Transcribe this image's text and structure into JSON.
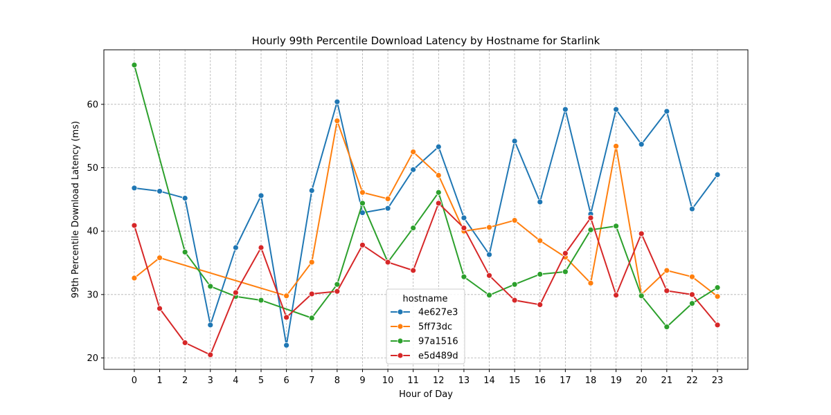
{
  "chart_data": {
    "type": "line",
    "title": "Hourly 99th Percentile Download Latency by Hostname for Starlink",
    "xlabel": "Hour of Day",
    "ylabel": "99th Percentile Download Latency (ms)",
    "xlim": [
      -1.2,
      24.2
    ],
    "ylim": [
      18.2,
      68.6
    ],
    "yticks": [
      20,
      30,
      40,
      50,
      60
    ],
    "grid": true,
    "legend": {
      "title": "hostname",
      "placement": "lower-center"
    },
    "series": [
      {
        "name": "4e627e3",
        "color": "#1f77b4",
        "points": [
          [
            0,
            46.8
          ],
          [
            1,
            46.3
          ],
          [
            2,
            45.2
          ],
          [
            3,
            25.2
          ],
          [
            4,
            37.4
          ],
          [
            5,
            45.6
          ],
          [
            6,
            22.0
          ],
          [
            7,
            46.4
          ],
          [
            8,
            60.4
          ],
          [
            9,
            42.9
          ],
          [
            10,
            43.6
          ],
          [
            11,
            49.7
          ],
          [
            12,
            53.3
          ],
          [
            13,
            42.1
          ],
          [
            14,
            36.3
          ],
          [
            15,
            54.2
          ],
          [
            16,
            44.6
          ],
          [
            17,
            59.2
          ],
          [
            18,
            42.7
          ],
          [
            19,
            59.2
          ],
          [
            20,
            53.7
          ],
          [
            21,
            58.9
          ],
          [
            22,
            43.5
          ],
          [
            23,
            48.9
          ]
        ]
      },
      {
        "name": "5ff73dc",
        "color": "#ff7f0e",
        "points": [
          [
            0,
            32.6
          ],
          [
            1,
            35.8
          ],
          [
            6,
            29.8
          ],
          [
            7,
            35.1
          ],
          [
            8,
            57.4
          ],
          [
            9,
            46.1
          ],
          [
            10,
            45.1
          ],
          [
            11,
            52.5
          ],
          [
            12,
            48.8
          ],
          [
            13,
            40.0
          ],
          [
            14,
            40.6
          ],
          [
            15,
            41.7
          ],
          [
            16,
            38.5
          ],
          [
            17,
            35.9
          ],
          [
            18,
            31.8
          ],
          [
            19,
            53.4
          ],
          [
            20,
            30.0
          ],
          [
            21,
            33.8
          ],
          [
            22,
            32.8
          ],
          [
            23,
            29.7
          ]
        ]
      },
      {
        "name": "97a1516",
        "color": "#2ca02c",
        "points": [
          [
            0,
            66.2
          ],
          [
            2,
            36.7
          ],
          [
            3,
            31.3
          ],
          [
            4,
            29.7
          ],
          [
            5,
            29.1
          ],
          [
            7,
            26.3
          ],
          [
            8,
            31.6
          ],
          [
            9,
            44.4
          ],
          [
            10,
            35.1
          ],
          [
            11,
            40.5
          ],
          [
            12,
            46.1
          ],
          [
            13,
            32.8
          ],
          [
            14,
            29.9
          ],
          [
            15,
            31.6
          ],
          [
            16,
            33.2
          ],
          [
            17,
            33.6
          ],
          [
            18,
            40.2
          ],
          [
            19,
            40.8
          ],
          [
            20,
            29.8
          ],
          [
            21,
            24.9
          ],
          [
            22,
            28.6
          ],
          [
            23,
            31.1
          ]
        ]
      },
      {
        "name": "e5d489d",
        "color": "#d62728",
        "points": [
          [
            0,
            40.9
          ],
          [
            1,
            27.8
          ],
          [
            2,
            22.4
          ],
          [
            3,
            20.5
          ],
          [
            4,
            30.3
          ],
          [
            5,
            37.4
          ],
          [
            6,
            26.4
          ],
          [
            7,
            30.1
          ],
          [
            8,
            30.5
          ],
          [
            9,
            37.8
          ],
          [
            10,
            35.1
          ],
          [
            11,
            33.8
          ],
          [
            12,
            44.4
          ],
          [
            13,
            40.5
          ],
          [
            14,
            33.0
          ],
          [
            15,
            29.1
          ],
          [
            16,
            28.4
          ],
          [
            17,
            36.5
          ],
          [
            18,
            42.1
          ],
          [
            19,
            29.9
          ],
          [
            20,
            39.6
          ],
          [
            21,
            30.6
          ],
          [
            22,
            30.0
          ],
          [
            23,
            25.2
          ]
        ]
      }
    ]
  }
}
